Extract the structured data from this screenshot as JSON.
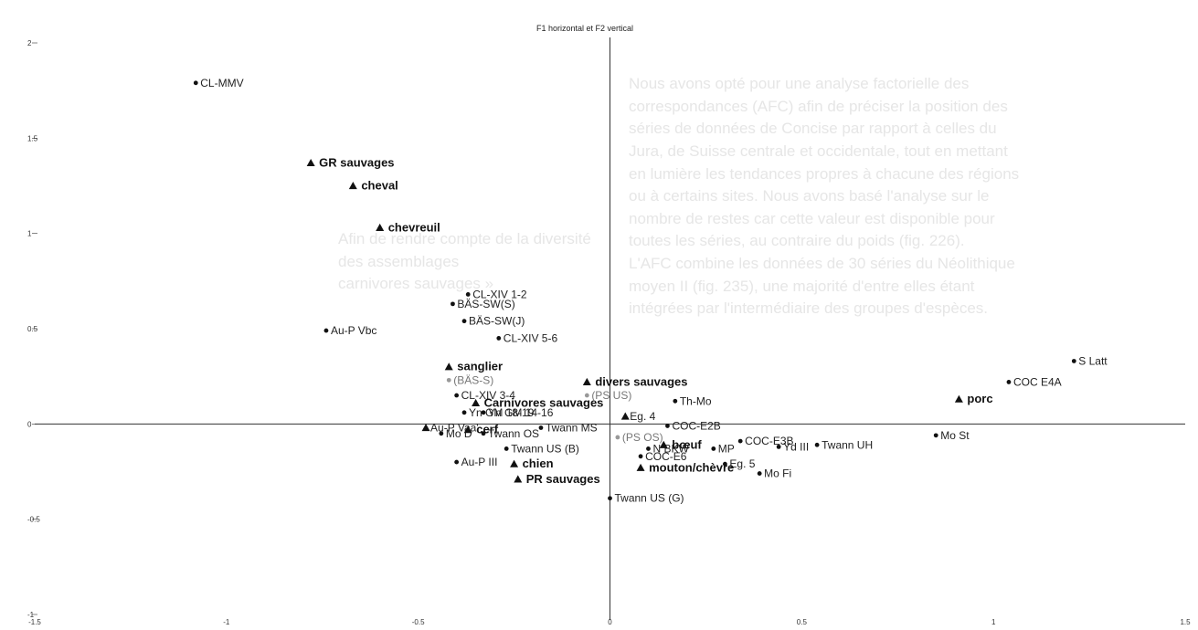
{
  "chart_data": {
    "type": "scatter",
    "title": "F1 horizontal et F2 vertical",
    "xlabel": "",
    "ylabel": "",
    "xlim": [
      -1.5,
      1.5
    ],
    "ylim": [
      -1,
      2
    ],
    "x_ticks": [
      "-1.5",
      "-1",
      "-0.5",
      "0",
      "0.5",
      "1",
      "1.5"
    ],
    "y_ticks": [
      "-1",
      "-0.5",
      "0",
      "0.5",
      "1",
      "1.5",
      "2"
    ],
    "grid": false,
    "points": [
      {
        "label": "CL-MMV",
        "x": -1.08,
        "y": 1.79,
        "marker": "dot",
        "bold": false,
        "grey": false
      },
      {
        "label": "GR sauvages",
        "x": -0.78,
        "y": 1.37,
        "marker": "triangle",
        "bold": true,
        "grey": false
      },
      {
        "label": "cheval",
        "x": -0.67,
        "y": 1.25,
        "marker": "triangle",
        "bold": true,
        "grey": false
      },
      {
        "label": "chevreuil",
        "x": -0.6,
        "y": 1.03,
        "marker": "triangle",
        "bold": true,
        "grey": false
      },
      {
        "label": "CL-XIV 1-2",
        "x": -0.37,
        "y": 0.68,
        "marker": "dot",
        "bold": false,
        "grey": false
      },
      {
        "label": "BÄS-SW(S)",
        "x": -0.41,
        "y": 0.63,
        "marker": "dot",
        "bold": false,
        "grey": false
      },
      {
        "label": "BÄS-SW(J)",
        "x": -0.38,
        "y": 0.54,
        "marker": "dot",
        "bold": false,
        "grey": false
      },
      {
        "label": "Au-P Vbc",
        "x": -0.74,
        "y": 0.49,
        "marker": "dot",
        "bold": false,
        "grey": false
      },
      {
        "label": "CL-XIV 5-6",
        "x": -0.29,
        "y": 0.45,
        "marker": "dot",
        "bold": false,
        "grey": false
      },
      {
        "label": "sanglier",
        "x": -0.42,
        "y": 0.3,
        "marker": "triangle",
        "bold": true,
        "grey": false
      },
      {
        "label": "(BÄS-S)",
        "x": -0.42,
        "y": 0.23,
        "marker": "dot",
        "bold": false,
        "grey": true
      },
      {
        "label": "CL-XIV 3-4",
        "x": -0.4,
        "y": 0.15,
        "marker": "dot",
        "bold": false,
        "grey": false
      },
      {
        "label": "divers sauvages",
        "x": -0.06,
        "y": 0.22,
        "marker": "triangle",
        "bold": true,
        "grey": false
      },
      {
        "label": "Carnivores sauvages",
        "x": -0.35,
        "y": 0.11,
        "marker": "triangle",
        "bold": true,
        "grey": false
      },
      {
        "label": "(PS US)",
        "x": -0.06,
        "y": 0.15,
        "marker": "dot",
        "bold": false,
        "grey": true
      },
      {
        "label": "Th-Mo",
        "x": 0.17,
        "y": 0.12,
        "marker": "dot",
        "bold": false,
        "grey": false
      },
      {
        "label": "Yn GM 18-19",
        "x": -0.38,
        "y": 0.06,
        "marker": "dot",
        "bold": false,
        "grey": false
      },
      {
        "label": "Yn GM 14-16",
        "x": -0.33,
        "y": 0.06,
        "marker": "dot",
        "bold": false,
        "grey": false
      },
      {
        "label": "Eg. 4",
        "x": 0.04,
        "y": 0.04,
        "marker": "triangle",
        "bold": false,
        "grey": false
      },
      {
        "label": "Au-P Vaa'",
        "x": -0.48,
        "y": -0.02,
        "marker": "triangle",
        "bold": false,
        "grey": false
      },
      {
        "label": "Twann MS",
        "x": -0.18,
        "y": -0.02,
        "marker": "dot",
        "bold": false,
        "grey": false
      },
      {
        "label": "COC-E2B",
        "x": 0.15,
        "y": -0.01,
        "marker": "dot",
        "bold": false,
        "grey": false
      },
      {
        "label": "Mo D",
        "x": -0.44,
        "y": -0.05,
        "marker": "dot",
        "bold": false,
        "grey": false
      },
      {
        "label": "cerf",
        "x": -0.37,
        "y": -0.03,
        "marker": "triangle",
        "bold": true,
        "grey": false
      },
      {
        "label": "Twann OS",
        "x": -0.33,
        "y": -0.05,
        "marker": "dot",
        "bold": false,
        "grey": false
      },
      {
        "label": "(PS OS)",
        "x": 0.02,
        "y": -0.07,
        "marker": "dot",
        "bold": false,
        "grey": true
      },
      {
        "label": "COC-E3B",
        "x": 0.34,
        "y": -0.09,
        "marker": "dot",
        "bold": false,
        "grey": false
      },
      {
        "label": "Twann US (B)",
        "x": -0.27,
        "y": -0.13,
        "marker": "dot",
        "bold": false,
        "grey": false
      },
      {
        "label": "N BKW",
        "x": 0.1,
        "y": -0.13,
        "marker": "dot",
        "bold": false,
        "grey": false
      },
      {
        "label": "bœuf",
        "x": 0.14,
        "y": -0.11,
        "marker": "triangle",
        "bold": true,
        "grey": false
      },
      {
        "label": "MP",
        "x": 0.27,
        "y": -0.13,
        "marker": "dot",
        "bold": false,
        "grey": false
      },
      {
        "label": "Yd III",
        "x": 0.44,
        "y": -0.12,
        "marker": "dot",
        "bold": false,
        "grey": false
      },
      {
        "label": "Twann UH",
        "x": 0.54,
        "y": -0.11,
        "marker": "dot",
        "bold": false,
        "grey": false
      },
      {
        "label": "COC-E6",
        "x": 0.08,
        "y": -0.17,
        "marker": "dot",
        "bold": false,
        "grey": false
      },
      {
        "label": "Eg. 5",
        "x": 0.3,
        "y": -0.21,
        "marker": "dot",
        "bold": false,
        "grey": false
      },
      {
        "label": "Au-P III",
        "x": -0.4,
        "y": -0.2,
        "marker": "dot",
        "bold": false,
        "grey": false
      },
      {
        "label": "chien",
        "x": -0.25,
        "y": -0.21,
        "marker": "triangle",
        "bold": true,
        "grey": false
      },
      {
        "label": "PR sauvages",
        "x": -0.24,
        "y": -0.29,
        "marker": "triangle",
        "bold": true,
        "grey": false
      },
      {
        "label": "mouton/chèvre",
        "x": 0.08,
        "y": -0.23,
        "marker": "triangle",
        "bold": true,
        "grey": false
      },
      {
        "label": "Mo Fi",
        "x": 0.39,
        "y": -0.26,
        "marker": "dot",
        "bold": false,
        "grey": false
      },
      {
        "label": "Twann US (G)",
        "x": 0.0,
        "y": -0.39,
        "marker": "dot",
        "bold": false,
        "grey": false
      },
      {
        "label": "S Latt",
        "x": 1.21,
        "y": 0.33,
        "marker": "dot",
        "bold": false,
        "grey": false
      },
      {
        "label": "COC E4A",
        "x": 1.04,
        "y": 0.22,
        "marker": "dot",
        "bold": false,
        "grey": false
      },
      {
        "label": "porc",
        "x": 0.91,
        "y": 0.13,
        "marker": "triangle",
        "bold": true,
        "grey": false
      },
      {
        "label": "Mo St",
        "x": 0.85,
        "y": -0.06,
        "marker": "dot",
        "bold": false,
        "grey": false
      }
    ]
  },
  "colors": {
    "background": "#ffffff",
    "axis": "#333333",
    "marker": "#111111",
    "grey_label": "#777777"
  },
  "bleed_through_text": {
    "lines_left": [
      "Afin de rendre compte de la diversité des assemblages",
      "carnivores sauvages »"
    ],
    "lines_right": [
      "Nous avons opté pour une analyse factorielle des",
      "correspondances (AFC) afin de préciser la position des",
      "séries de données de Concise par rapport à celles du",
      "Jura, de Suisse centrale et occidentale, tout en mettant",
      "en lumière les tendances propres à chacune des régions",
      "ou à certains sites. Nous avons basé l'analyse sur le",
      "nombre de restes car cette valeur est disponible pour",
      "toutes les séries, au contraire du poids (fig. 226).",
      "L'AFC combine les données de 30 séries du Néolithique",
      "moyen II (fig. 235), une majorité d'entre elles étant",
      "intégrées par l'intermédiaire des groupes d'espèces."
    ]
  }
}
